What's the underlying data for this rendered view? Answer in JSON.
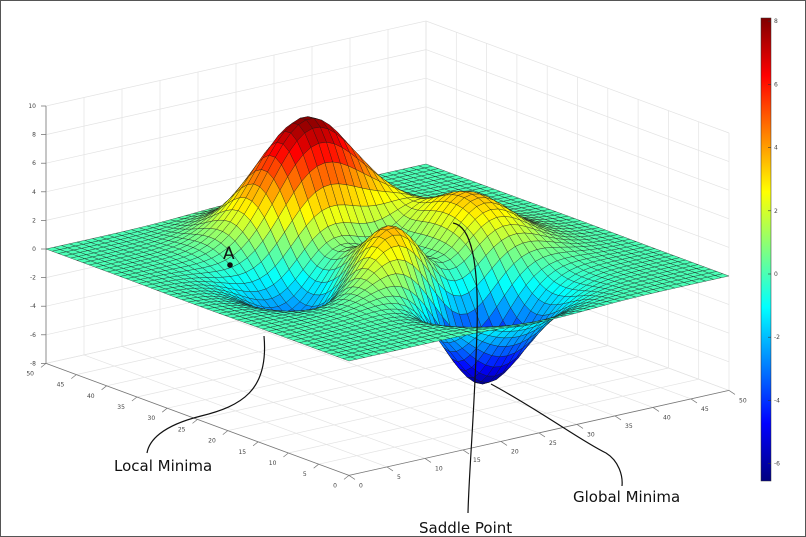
{
  "chart_data": {
    "type": "surface",
    "surface_function": "peaks",
    "grid_size": 50,
    "colormap": "jet",
    "xlim": [
      0,
      50
    ],
    "ylim": [
      0,
      50
    ],
    "zlim": [
      -8,
      10
    ],
    "x_ticks": [
      "0",
      "5",
      "10",
      "15",
      "20",
      "25",
      "30",
      "35",
      "40",
      "45",
      "50"
    ],
    "y_ticks": [
      "0",
      "5",
      "10",
      "15",
      "20",
      "25",
      "30",
      "35",
      "40",
      "45",
      "50"
    ],
    "z_ticks": [
      "-8",
      "-6",
      "-4",
      "-2",
      "0",
      "2",
      "4",
      "6",
      "8",
      "10"
    ],
    "grid": true,
    "colorbar": {
      "position": "right",
      "range": [
        -6.55,
        8.1
      ],
      "ticks": [
        "8",
        "6",
        "4",
        "2",
        "0",
        "-2",
        "-4",
        "-6"
      ]
    },
    "annotations": {
      "point_label": "A",
      "local_minima": "Local Minima",
      "saddle_point": "Saddle Point",
      "global_minima": "Global Minima"
    }
  }
}
